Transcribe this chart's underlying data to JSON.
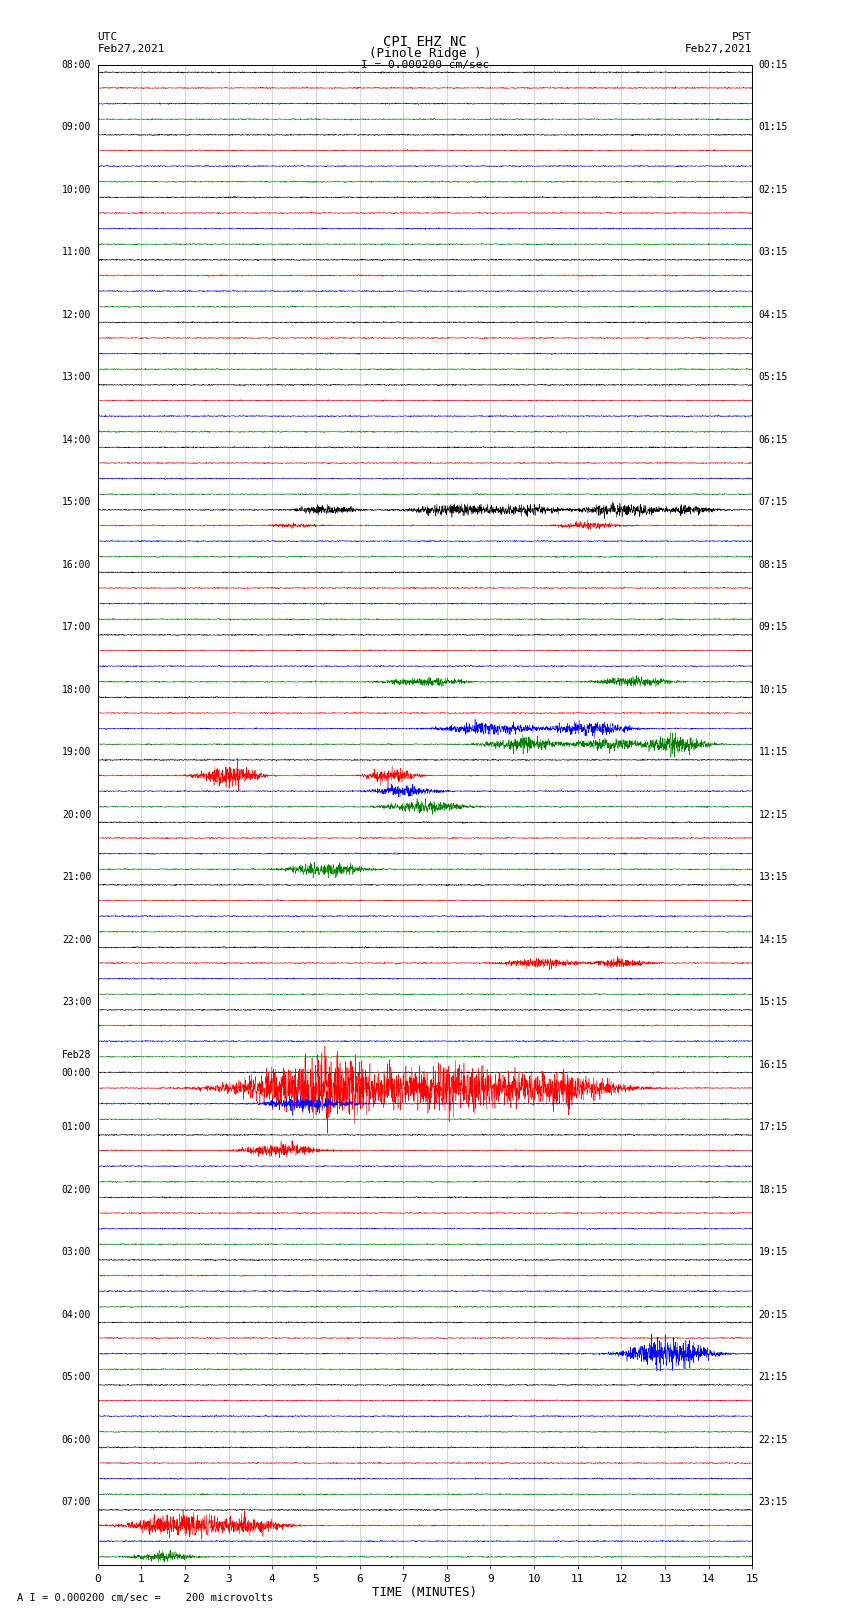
{
  "title_line1": "CPI EHZ NC",
  "title_line2": "(Pinole Ridge )",
  "scale_label": "I = 0.000200 cm/sec",
  "bottom_label": "A I = 0.000200 cm/sec =    200 microvolts",
  "utc_label": "UTC\nFeb27,2021",
  "pst_label": "PST\nFeb27,2021",
  "xlabel": "TIME (MINUTES)",
  "left_times": [
    "08:00",
    "09:00",
    "10:00",
    "11:00",
    "12:00",
    "13:00",
    "14:00",
    "15:00",
    "16:00",
    "17:00",
    "18:00",
    "19:00",
    "20:00",
    "21:00",
    "22:00",
    "23:00",
    "Feb28\n00:00",
    "01:00",
    "02:00",
    "03:00",
    "04:00",
    "05:00",
    "06:00",
    "07:00"
  ],
  "right_times": [
    "00:15",
    "01:15",
    "02:15",
    "03:15",
    "04:15",
    "05:15",
    "06:15",
    "07:15",
    "08:15",
    "09:15",
    "10:15",
    "11:15",
    "12:15",
    "13:15",
    "14:15",
    "15:15",
    "16:15",
    "17:15",
    "18:15",
    "19:15",
    "20:15",
    "21:15",
    "22:15",
    "23:15"
  ],
  "colors": [
    "black",
    "red",
    "blue",
    "green"
  ],
  "n_rows": 24,
  "traces_per_row": 4,
  "bg_color": "white",
  "grid_color": "#bbbbbb",
  "amplitude_scale": 0.38,
  "noise_scale": 0.045,
  "seed": 12345,
  "n_points": 3000,
  "lw": 0.35
}
